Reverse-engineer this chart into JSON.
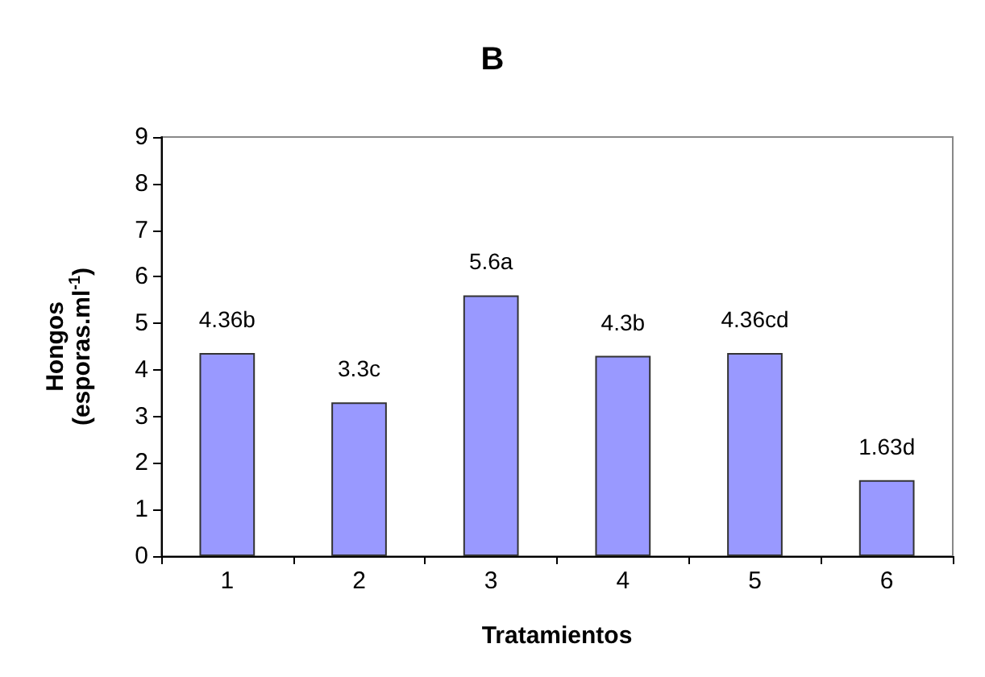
{
  "chart_data": {
    "type": "bar",
    "title": "B",
    "xlabel": "Tratamientos",
    "ylabel": "Hongos (esporas.ml$^{-1}$)",
    "categories": [
      "1",
      "2",
      "3",
      "4",
      "5",
      "6"
    ],
    "values": [
      4.36,
      3.3,
      5.6,
      4.3,
      4.36,
      1.63
    ],
    "value_labels": [
      "4.36b",
      "3.3c",
      "5.6a",
      "4.3b",
      "4.36cd",
      "1.63d"
    ],
    "color": "#9999ff",
    "ylim": [
      0,
      9
    ],
    "yticks": [
      0,
      1,
      2,
      3,
      4,
      5,
      6,
      7,
      8,
      9
    ]
  }
}
